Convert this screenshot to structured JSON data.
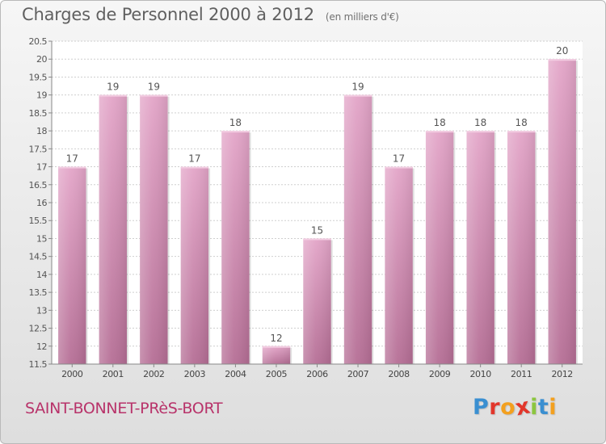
{
  "header": {
    "title": "Charges de Personnel 2000 à 2012",
    "subtitle": "(en milliers d'€)"
  },
  "footer": {
    "commune": "SAINT-BONNET-PRèS-BORT",
    "logo_letters": [
      "P",
      "r",
      "o",
      "x",
      "i",
      "t",
      "i"
    ],
    "logo_colors": [
      "#3a8fd1",
      "#e2362b",
      "#f3a01f",
      "#e2362b",
      "#8cc63f",
      "#3a8fd1",
      "#f3a01f"
    ]
  },
  "chart_data": {
    "type": "bar",
    "categories": [
      "2000",
      "2001",
      "2002",
      "2003",
      "2004",
      "2005",
      "2006",
      "2007",
      "2008",
      "2009",
      "2010",
      "2011",
      "2012"
    ],
    "values": [
      17,
      19,
      19,
      17,
      18,
      12,
      15,
      19,
      17,
      18,
      18,
      18,
      20
    ],
    "data_labels": [
      "17",
      "19",
      "19",
      "17",
      "18",
      "12",
      "15",
      "19",
      "17",
      "18",
      "18",
      "18",
      "20"
    ],
    "yticks": [
      "11.5",
      "12",
      "12.5",
      "13",
      "13.5",
      "14",
      "14.5",
      "15",
      "15.5",
      "16",
      "16.5",
      "17",
      "17.5",
      "18",
      "18.5",
      "19",
      "19.5",
      "20",
      "20.5"
    ],
    "ylim": [
      11.5,
      20.5
    ],
    "grid": true,
    "bar_color": "#d68fb5",
    "bar_color_dark": "#b56e95"
  }
}
